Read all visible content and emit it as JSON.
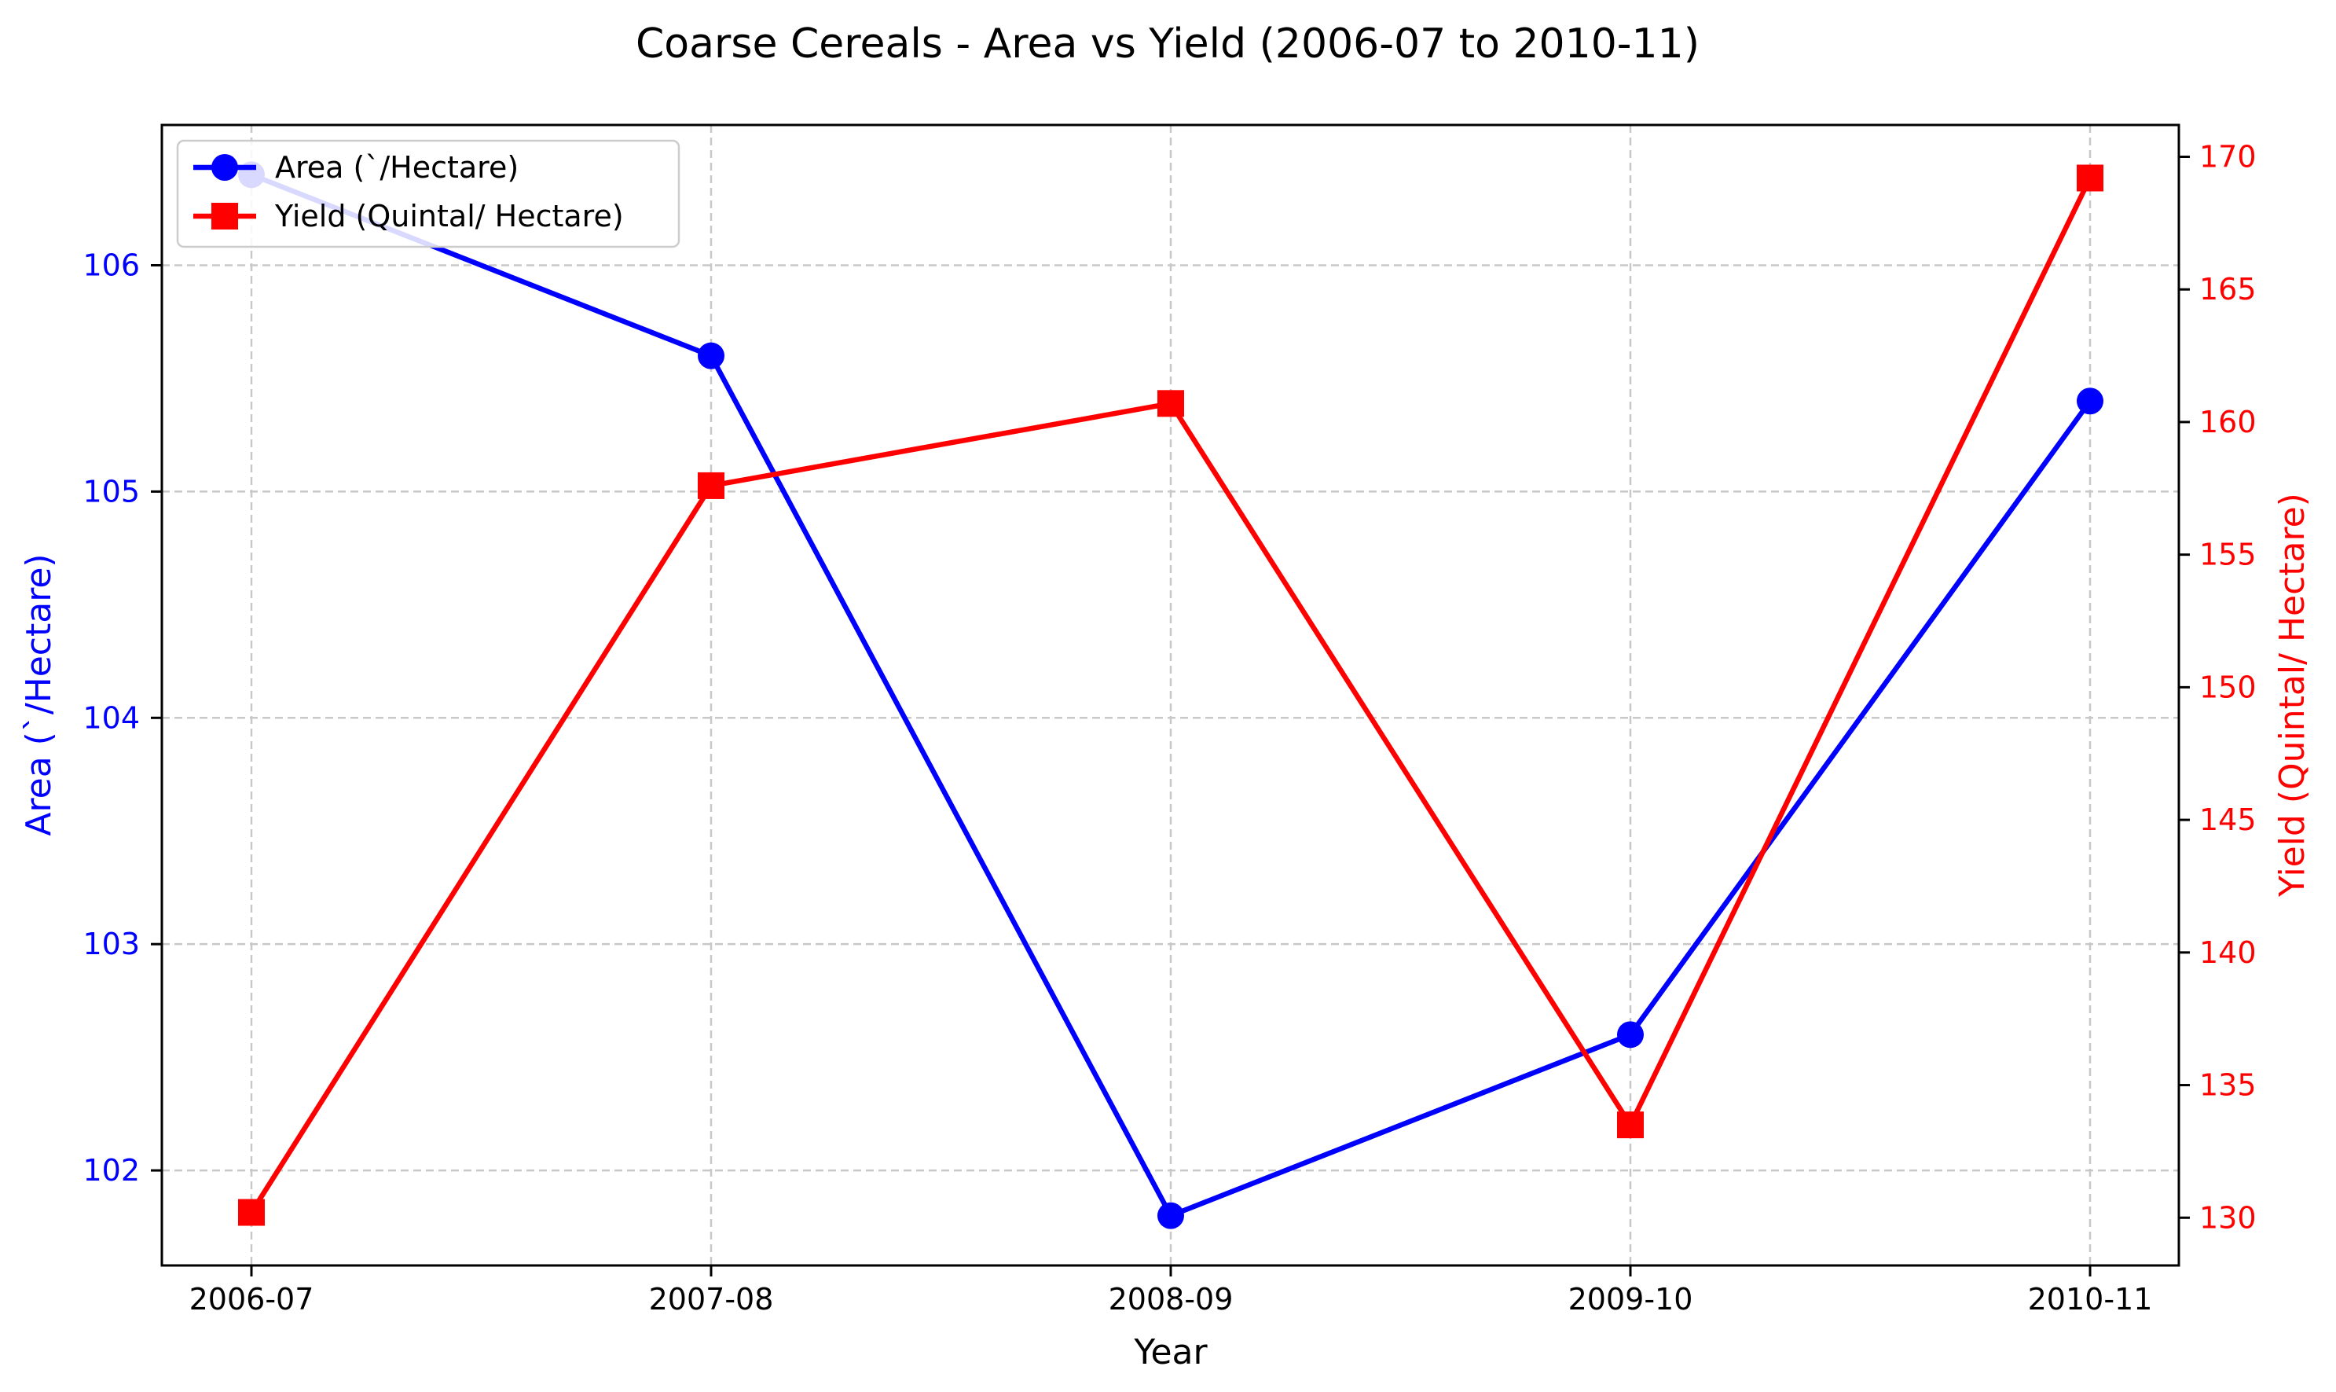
{
  "chart_data": {
    "type": "line",
    "title": "Coarse Cereals - Area vs Yield (2006-07 to 2010-11)",
    "xlabel": "Year",
    "categories": [
      "2006-07",
      "2007-08",
      "2008-09",
      "2009-10",
      "2010-11"
    ],
    "grid": true,
    "legend_position": "top-left",
    "series": [
      {
        "name": "Area (`/Hectare)",
        "axis": "left",
        "color": "#0000ff",
        "marker": "circle",
        "values": [
          106.4,
          105.6,
          101.8,
          102.6,
          105.4
        ]
      },
      {
        "name": "Yield (Quintal/ Hectare)",
        "axis": "right",
        "color": "#ff0000",
        "marker": "square",
        "values": [
          130.2,
          157.6,
          160.7,
          133.5,
          169.2
        ]
      }
    ],
    "y_left": {
      "label": "Area (`/Hectare)",
      "ylim": [
        101.58,
        106.62
      ],
      "ticks": [
        102,
        103,
        104,
        105,
        106
      ],
      "color": "#0000ff"
    },
    "y_right": {
      "label": "Yield (Quintal/ Hectare)",
      "ylim": [
        128.2,
        171.2
      ],
      "ticks": [
        130,
        135,
        140,
        145,
        150,
        155,
        160,
        165,
        170
      ],
      "color": "#ff0000"
    }
  }
}
